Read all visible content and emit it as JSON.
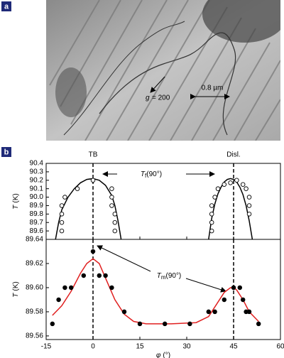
{
  "panels": {
    "a": "a",
    "b": "b"
  },
  "micrograph": {
    "g_symbol": "g",
    "g_value": "= 200",
    "scale": "0.8 µm"
  },
  "chart_data": [
    {
      "type": "scatter",
      "xlim": [
        -15,
        60
      ],
      "xticks": [
        -15,
        0,
        15,
        30,
        45,
        60
      ],
      "show_xtick_labels": false,
      "ylim": [
        89.5,
        90.4
      ],
      "yticks": [
        89.6,
        {
          "value": 89.7,
          "label": "89.7"
        },
        89.8,
        89.9,
        {
          "value": 90,
          "label": "90.0"
        },
        90.1,
        90.2,
        90.3,
        90.4
      ],
      "ylabel": {
        "symbol": "T",
        "unit": "(K)"
      },
      "annotations": [
        "TB",
        "Disl."
      ],
      "vlines": [
        0,
        45
      ],
      "arrow_label": {
        "symbol": "T",
        "sub": "f",
        "rest": "(90°)"
      },
      "points": {
        "filled": false,
        "color": "#000",
        "x": [
          -10,
          -10,
          -10,
          -10,
          -9,
          -5,
          0,
          6,
          6,
          6,
          7,
          7,
          7,
          38,
          38,
          38,
          38,
          39,
          40,
          42,
          44,
          46,
          48,
          49,
          50,
          50,
          50
        ],
        "values": [
          89.6,
          89.7,
          89.8,
          89.9,
          90.0,
          90.1,
          90.2,
          90.1,
          90.0,
          89.9,
          89.8,
          89.7,
          89.6,
          89.6,
          89.7,
          89.8,
          89.9,
          90.0,
          90.1,
          90.15,
          90.17,
          90.2,
          90.15,
          90.1,
          90.0,
          89.9,
          89.8
        ]
      },
      "fits": [
        {
          "color": "#000",
          "x": [
            -12,
            -11,
            -10,
            -8,
            -6,
            -4,
            -2,
            0,
            2,
            4,
            6,
            7,
            8,
            9
          ],
          "values": [
            89.5,
            89.7,
            89.85,
            90.0,
            90.1,
            90.17,
            90.21,
            90.22,
            90.2,
            90.14,
            90.02,
            89.9,
            89.72,
            89.5
          ]
        },
        {
          "color": "#000",
          "x": [
            37,
            38,
            39,
            40,
            41,
            42,
            43,
            44,
            45,
            46,
            47,
            48,
            49,
            50,
            51
          ],
          "values": [
            89.5,
            89.75,
            89.92,
            90.04,
            90.12,
            90.18,
            90.21,
            90.22,
            90.21,
            90.18,
            90.12,
            90.03,
            89.9,
            89.72,
            89.5
          ]
        }
      ]
    },
    {
      "type": "scatter",
      "xlim": [
        -15,
        60
      ],
      "xticks": [
        -15,
        0,
        15,
        30,
        45,
        60
      ],
      "show_xtick_labels": true,
      "xlabel": {
        "symbol": "φ",
        "unit": "(°)"
      },
      "ylim": [
        89.557,
        89.64
      ],
      "yticks": [
        89.56,
        89.58,
        {
          "value": 89.6,
          "label": "89.60"
        },
        89.62,
        89.64
      ],
      "ylabel": {
        "symbol": "T",
        "unit": "(K)"
      },
      "vlines": [
        0,
        45
      ],
      "arrow_label": {
        "symbol": "T",
        "sub": "m",
        "rest": "(90°)"
      },
      "points": {
        "filled": true,
        "color": "#000",
        "x": [
          -13,
          -11,
          -9,
          -7,
          -3,
          0,
          2,
          4,
          6,
          10,
          15,
          23,
          31,
          37,
          39,
          42,
          45,
          47,
          48,
          49,
          50,
          53
        ],
        "values": [
          89.57,
          89.59,
          89.6,
          89.6,
          89.61,
          89.63,
          89.61,
          89.61,
          89.6,
          89.58,
          89.57,
          89.57,
          89.57,
          89.58,
          89.58,
          89.59,
          89.6,
          89.6,
          89.59,
          89.58,
          89.58,
          89.57
        ]
      },
      "fits": [
        {
          "color": "#e02020",
          "x": [
            -13,
            -10,
            -7,
            -4,
            -2,
            0,
            2,
            4,
            7,
            10,
            13,
            17,
            25,
            33,
            37,
            40,
            42,
            44,
            45,
            46,
            48,
            50,
            53
          ],
          "values": [
            89.577,
            89.585,
            89.597,
            89.612,
            89.62,
            89.624,
            89.62,
            89.608,
            89.59,
            89.578,
            89.572,
            89.57,
            89.57,
            89.571,
            89.576,
            89.588,
            89.596,
            89.6,
            89.6,
            89.598,
            89.59,
            89.58,
            89.572
          ]
        }
      ]
    }
  ]
}
